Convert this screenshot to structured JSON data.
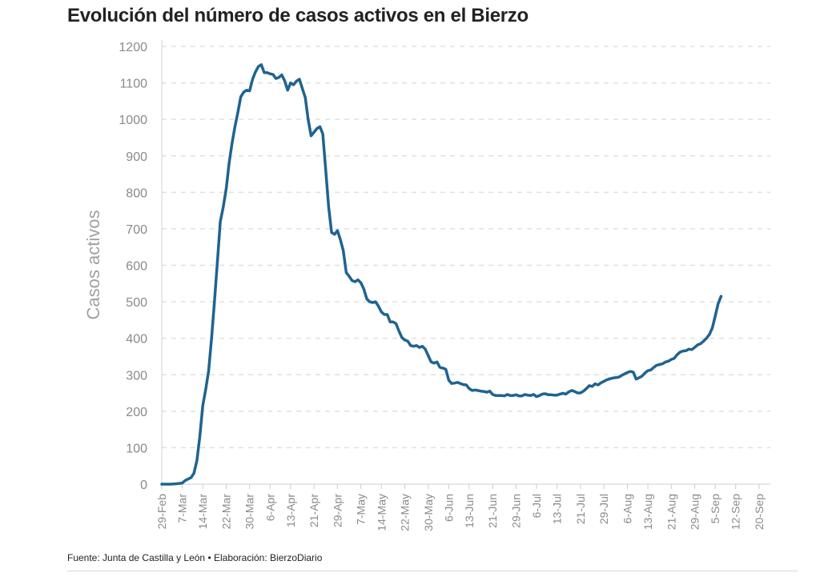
{
  "header": {
    "title": "Evolución del número de casos activos en el Bierzo"
  },
  "footer": {
    "source": "Fuente: Junta de Castilla y León • Elaboración: BierzoDiario"
  },
  "chart_data": {
    "type": "line",
    "title": "Evolución del número de casos activos en el Bierzo",
    "ylabel": "Casos activos",
    "xlabel": "",
    "ylim": [
      0,
      1200
    ],
    "yticks": [
      0,
      100,
      200,
      300,
      400,
      500,
      600,
      700,
      800,
      900,
      1000,
      1100,
      1200
    ],
    "xlim": [
      "2020-02-29",
      "2020-09-20"
    ],
    "xticks": [
      {
        "date": "2020-02-29",
        "label": "29-Feb"
      },
      {
        "date": "2020-03-07",
        "label": "7-Mar"
      },
      {
        "date": "2020-03-14",
        "label": "14-Mar"
      },
      {
        "date": "2020-03-22",
        "label": "22-Mar"
      },
      {
        "date": "2020-03-30",
        "label": "30-Mar"
      },
      {
        "date": "2020-04-06",
        "label": "6-Apr"
      },
      {
        "date": "2020-04-13",
        "label": "13-Apr"
      },
      {
        "date": "2020-04-21",
        "label": "21-Apr"
      },
      {
        "date": "2020-04-29",
        "label": "29-Apr"
      },
      {
        "date": "2020-05-07",
        "label": "7-May"
      },
      {
        "date": "2020-05-14",
        "label": "14-May"
      },
      {
        "date": "2020-05-22",
        "label": "22-May"
      },
      {
        "date": "2020-05-30",
        "label": "30-May"
      },
      {
        "date": "2020-06-06",
        "label": "6-Jun"
      },
      {
        "date": "2020-06-13",
        "label": "13-Jun"
      },
      {
        "date": "2020-06-21",
        "label": "21-Jun"
      },
      {
        "date": "2020-06-29",
        "label": "29-Jun"
      },
      {
        "date": "2020-07-06",
        "label": "6-Jul"
      },
      {
        "date": "2020-07-13",
        "label": "13-Jul"
      },
      {
        "date": "2020-07-21",
        "label": "21-Jul"
      },
      {
        "date": "2020-07-29",
        "label": "29-Jul"
      },
      {
        "date": "2020-08-06",
        "label": "6-Aug"
      },
      {
        "date": "2020-08-13",
        "label": "13-Aug"
      },
      {
        "date": "2020-08-21",
        "label": "21-Aug"
      },
      {
        "date": "2020-08-29",
        "label": "29-Aug"
      },
      {
        "date": "2020-09-05",
        "label": "5-Sep"
      },
      {
        "date": "2020-09-12",
        "label": "12-Sep"
      },
      {
        "date": "2020-09-20",
        "label": "20-Sep"
      }
    ],
    "grid": true,
    "line_color": "#1f6391",
    "series": [
      {
        "points": [
          [
            "2020-02-29",
            0
          ],
          [
            "2020-03-03",
            0
          ],
          [
            "2020-03-05",
            1
          ],
          [
            "2020-03-07",
            3
          ],
          [
            "2020-03-08",
            10
          ],
          [
            "2020-03-09",
            14
          ],
          [
            "2020-03-10",
            18
          ],
          [
            "2020-03-11",
            30
          ],
          [
            "2020-03-12",
            65
          ],
          [
            "2020-03-13",
            130
          ],
          [
            "2020-03-14",
            215
          ],
          [
            "2020-03-15",
            260
          ],
          [
            "2020-03-16",
            310
          ],
          [
            "2020-03-17",
            400
          ],
          [
            "2020-03-18",
            500
          ],
          [
            "2020-03-19",
            610
          ],
          [
            "2020-03-20",
            720
          ],
          [
            "2020-03-21",
            760
          ],
          [
            "2020-03-22",
            810
          ],
          [
            "2020-03-23",
            880
          ],
          [
            "2020-03-24",
            935
          ],
          [
            "2020-03-25",
            980
          ],
          [
            "2020-03-26",
            1020
          ],
          [
            "2020-03-27",
            1062
          ],
          [
            "2020-03-28",
            1075
          ],
          [
            "2020-03-29",
            1080
          ],
          [
            "2020-03-30",
            1078
          ],
          [
            "2020-03-31",
            1110
          ],
          [
            "2020-04-01",
            1130
          ],
          [
            "2020-04-02",
            1145
          ],
          [
            "2020-04-03",
            1150
          ],
          [
            "2020-04-04",
            1128
          ],
          [
            "2020-04-05",
            1128
          ],
          [
            "2020-04-06",
            1125
          ],
          [
            "2020-04-07",
            1123
          ],
          [
            "2020-04-08",
            1112
          ],
          [
            "2020-04-09",
            1115
          ],
          [
            "2020-04-10",
            1122
          ],
          [
            "2020-04-11",
            1105
          ],
          [
            "2020-04-12",
            1080
          ],
          [
            "2020-04-13",
            1100
          ],
          [
            "2020-04-14",
            1095
          ],
          [
            "2020-04-15",
            1105
          ],
          [
            "2020-04-16",
            1110
          ],
          [
            "2020-04-17",
            1085
          ],
          [
            "2020-04-18",
            1060
          ],
          [
            "2020-04-19",
            1000
          ],
          [
            "2020-04-20",
            955
          ],
          [
            "2020-04-21",
            965
          ],
          [
            "2020-04-22",
            975
          ],
          [
            "2020-04-23",
            980
          ],
          [
            "2020-04-24",
            960
          ],
          [
            "2020-04-25",
            860
          ],
          [
            "2020-04-26",
            760
          ],
          [
            "2020-04-27",
            690
          ],
          [
            "2020-04-28",
            685
          ],
          [
            "2020-04-29",
            695
          ],
          [
            "2020-04-30",
            670
          ],
          [
            "2020-05-01",
            640
          ],
          [
            "2020-05-02",
            580
          ],
          [
            "2020-05-03",
            570
          ],
          [
            "2020-05-04",
            558
          ],
          [
            "2020-05-05",
            555
          ],
          [
            "2020-05-06",
            560
          ],
          [
            "2020-05-07",
            552
          ],
          [
            "2020-05-08",
            535
          ],
          [
            "2020-05-09",
            508
          ],
          [
            "2020-05-10",
            500
          ],
          [
            "2020-05-11",
            498
          ],
          [
            "2020-05-12",
            500
          ],
          [
            "2020-05-13",
            488
          ],
          [
            "2020-05-14",
            472
          ],
          [
            "2020-05-15",
            465
          ],
          [
            "2020-05-16",
            465
          ],
          [
            "2020-05-17",
            445
          ],
          [
            "2020-05-18",
            445
          ],
          [
            "2020-05-19",
            440
          ],
          [
            "2020-05-20",
            420
          ],
          [
            "2020-05-21",
            402
          ],
          [
            "2020-05-22",
            395
          ],
          [
            "2020-05-23",
            392
          ],
          [
            "2020-05-24",
            380
          ],
          [
            "2020-05-25",
            378
          ],
          [
            "2020-05-26",
            380
          ],
          [
            "2020-05-27",
            375
          ],
          [
            "2020-05-28",
            378
          ],
          [
            "2020-05-29",
            370
          ],
          [
            "2020-05-30",
            352
          ],
          [
            "2020-05-31",
            335
          ],
          [
            "2020-06-01",
            332
          ],
          [
            "2020-06-02",
            335
          ],
          [
            "2020-06-03",
            320
          ],
          [
            "2020-06-04",
            318
          ],
          [
            "2020-06-05",
            315
          ],
          [
            "2020-06-06",
            285
          ],
          [
            "2020-06-07",
            276
          ],
          [
            "2020-06-08",
            277
          ],
          [
            "2020-06-09",
            279
          ],
          [
            "2020-06-10",
            276
          ],
          [
            "2020-06-11",
            273
          ],
          [
            "2020-06-12",
            272
          ],
          [
            "2020-06-13",
            262
          ],
          [
            "2020-06-14",
            257
          ],
          [
            "2020-06-15",
            258
          ],
          [
            "2020-06-16",
            257
          ],
          [
            "2020-06-17",
            255
          ],
          [
            "2020-06-18",
            254
          ],
          [
            "2020-06-19",
            252
          ],
          [
            "2020-06-20",
            255
          ],
          [
            "2020-06-21",
            246
          ],
          [
            "2020-06-22",
            243
          ],
          [
            "2020-06-23",
            243
          ],
          [
            "2020-06-24",
            243
          ],
          [
            "2020-06-25",
            242
          ],
          [
            "2020-06-26",
            246
          ],
          [
            "2020-06-27",
            243
          ],
          [
            "2020-06-28",
            243
          ],
          [
            "2020-06-29",
            245
          ],
          [
            "2020-06-30",
            242
          ],
          [
            "2020-07-01",
            242
          ],
          [
            "2020-07-02",
            246
          ],
          [
            "2020-07-03",
            244
          ],
          [
            "2020-07-04",
            243
          ],
          [
            "2020-07-05",
            246
          ],
          [
            "2020-07-06",
            240
          ],
          [
            "2020-07-07",
            243
          ],
          [
            "2020-07-08",
            247
          ],
          [
            "2020-07-09",
            248
          ],
          [
            "2020-07-10",
            245
          ],
          [
            "2020-07-11",
            245
          ],
          [
            "2020-07-12",
            244
          ],
          [
            "2020-07-13",
            244
          ],
          [
            "2020-07-14",
            247
          ],
          [
            "2020-07-15",
            249
          ],
          [
            "2020-07-16",
            247
          ],
          [
            "2020-07-17",
            253
          ],
          [
            "2020-07-18",
            257
          ],
          [
            "2020-07-19",
            254
          ],
          [
            "2020-07-20",
            250
          ],
          [
            "2020-07-21",
            250
          ],
          [
            "2020-07-22",
            255
          ],
          [
            "2020-07-23",
            262
          ],
          [
            "2020-07-24",
            270
          ],
          [
            "2020-07-25",
            268
          ],
          [
            "2020-07-26",
            275
          ],
          [
            "2020-07-27",
            272
          ],
          [
            "2020-07-28",
            278
          ],
          [
            "2020-07-29",
            282
          ],
          [
            "2020-07-30",
            286
          ],
          [
            "2020-07-31",
            289
          ],
          [
            "2020-08-01",
            291
          ],
          [
            "2020-08-02",
            292
          ],
          [
            "2020-08-03",
            293
          ],
          [
            "2020-08-04",
            298
          ],
          [
            "2020-08-05",
            302
          ],
          [
            "2020-08-06",
            306
          ],
          [
            "2020-08-07",
            309
          ],
          [
            "2020-08-08",
            307
          ],
          [
            "2020-08-09",
            288
          ],
          [
            "2020-08-10",
            292
          ],
          [
            "2020-08-11",
            296
          ],
          [
            "2020-08-12",
            305
          ],
          [
            "2020-08-13",
            311
          ],
          [
            "2020-08-14",
            313
          ],
          [
            "2020-08-15",
            320
          ],
          [
            "2020-08-16",
            326
          ],
          [
            "2020-08-17",
            328
          ],
          [
            "2020-08-18",
            330
          ],
          [
            "2020-08-19",
            335
          ],
          [
            "2020-08-20",
            337
          ],
          [
            "2020-08-21",
            342
          ],
          [
            "2020-08-22",
            345
          ],
          [
            "2020-08-23",
            355
          ],
          [
            "2020-08-24",
            362
          ],
          [
            "2020-08-25",
            365
          ],
          [
            "2020-08-26",
            366
          ],
          [
            "2020-08-27",
            370
          ],
          [
            "2020-08-28",
            369
          ],
          [
            "2020-08-29",
            375
          ],
          [
            "2020-08-30",
            382
          ],
          [
            "2020-08-31",
            385
          ],
          [
            "2020-09-01",
            392
          ],
          [
            "2020-09-02",
            400
          ],
          [
            "2020-09-03",
            410
          ],
          [
            "2020-09-04",
            428
          ],
          [
            "2020-09-05",
            460
          ],
          [
            "2020-09-06",
            495
          ],
          [
            "2020-09-07",
            515
          ]
        ]
      }
    ]
  }
}
